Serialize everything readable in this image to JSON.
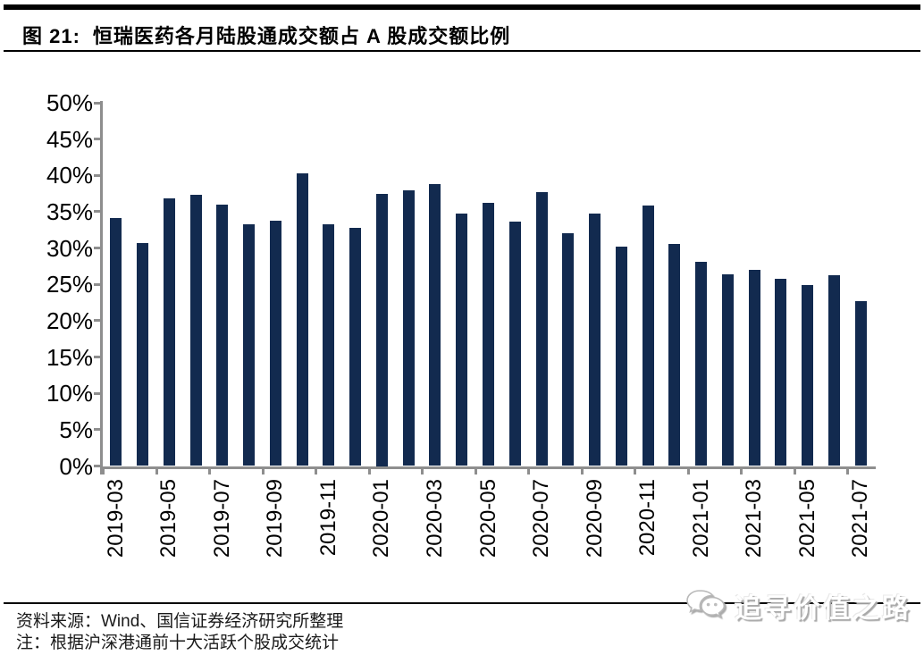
{
  "header": {
    "figure_label": "图 21:",
    "title": "恒瑞医药各月陆股通成交额占 A 股成交额比例"
  },
  "chart_data": {
    "type": "bar",
    "title": "恒瑞医药各月陆股通成交额占 A 股成交额比例",
    "categories": [
      "2019-03",
      "2019-04",
      "2019-05",
      "2019-06",
      "2019-07",
      "2019-08",
      "2019-09",
      "2019-10",
      "2019-11",
      "2019-12",
      "2020-01",
      "2020-02",
      "2020-03",
      "2020-04",
      "2020-05",
      "2020-06",
      "2020-07",
      "2020-08",
      "2020-09",
      "2020-10",
      "2020-11",
      "2020-12",
      "2021-01",
      "2021-02",
      "2021-03",
      "2021-04",
      "2021-05",
      "2021-06",
      "2021-07"
    ],
    "values": [
      34.1,
      30.7,
      36.8,
      37.3,
      36.0,
      33.3,
      33.8,
      40.3,
      33.3,
      32.8,
      37.5,
      38.0,
      38.8,
      34.7,
      36.2,
      33.7,
      37.7,
      32.0,
      34.7,
      30.2,
      35.9,
      30.6,
      28.1,
      26.4,
      27.0,
      25.8,
      24.9,
      26.2,
      22.7
    ],
    "xlabel": "",
    "ylabel": "",
    "ylim": [
      0,
      50
    ],
    "ytick_step": 5,
    "ytick_labels_top_to_bottom": [
      "50%",
      "45%",
      "40%",
      "35%",
      "30%",
      "25%",
      "20%",
      "15%",
      "10%",
      "5%",
      "0%"
    ],
    "xtick_labels": [
      "2019-03",
      "2019-05",
      "2019-07",
      "2019-09",
      "2019-11",
      "2020-01",
      "2020-03",
      "2020-05",
      "2020-07",
      "2020-09",
      "2020-11",
      "2021-01",
      "2021-03",
      "2021-05",
      "2021-07"
    ],
    "xtick_every": 2,
    "grid": false,
    "legend": false,
    "bar_color": "#122A4F",
    "axis_color": "#8E8E8E"
  },
  "footer": {
    "source": "资料来源：Wind、国信证券经济研究所整理",
    "note": "注：根据沪深港通前十大活跃个股成交统计",
    "watermark": "追寻价值之路"
  }
}
